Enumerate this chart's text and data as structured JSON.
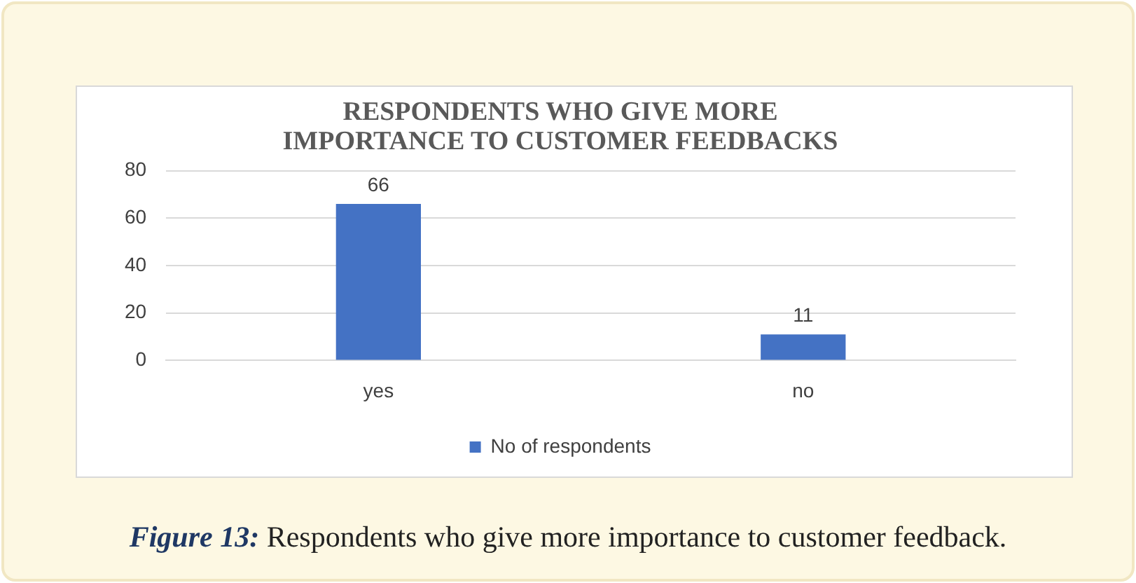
{
  "chart_data": {
    "type": "bar",
    "title": "RESPONDENTS WHO GIVE MORE IMPORTANCE TO CUSTOMER FEEDBACKS",
    "categories": [
      "yes",
      "no"
    ],
    "series": [
      {
        "name": "No of respondents",
        "color": "#4472c4",
        "values": [
          66,
          11
        ]
      }
    ],
    "ylim": [
      0,
      80
    ],
    "yticks": [
      0,
      20,
      40,
      60,
      80
    ],
    "grid": "y",
    "legend": "bottom",
    "data_labels": true,
    "annotations": [
      "Figure 13: Respondents who give more importance to customer feedback."
    ]
  }
}
